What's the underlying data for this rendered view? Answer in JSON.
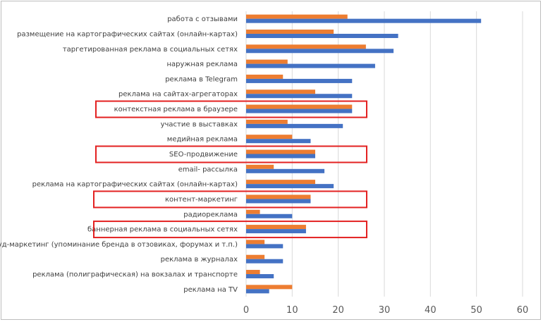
{
  "chart_data": {
    "type": "bar",
    "orientation": "horizontal",
    "categories": [
      "работа с отзывами",
      "размещение на картографических сайтах (онлайн-картах)",
      "таргетированная реклама в социальных сетях",
      "наружная реклама",
      "реклама в Telegram",
      "реклама на сайтах-агрегаторах",
      "контекстная реклама в браузере",
      "участие в выставках",
      "медийная реклама",
      "SEO-продвижение",
      "email- рассылка",
      "реклама на картографических сайтах (онлайн-картах)",
      "контент-маркетинг",
      "радиореклама",
      "баннерная реклама в социальных сетях",
      "крауд-маркетинг (упоминание бренда в отзовиках, форумах и т.п.)",
      "реклама в журналах",
      "реклама (полиграфическая) на вокзалах и транспорте",
      "реклама на TV"
    ],
    "series": [
      {
        "color": "#ed7d31",
        "values": [
          22,
          19,
          26,
          9,
          8,
          15,
          23,
          9,
          10,
          15,
          6,
          15,
          14,
          3,
          13,
          4,
          4,
          3,
          10
        ]
      },
      {
        "color": "#4472c4",
        "values": [
          51,
          33,
          32,
          28,
          23,
          23,
          23,
          21,
          14,
          15,
          17,
          19,
          14,
          10,
          13,
          8,
          8,
          6,
          5
        ]
      }
    ],
    "xlim": [
      0,
      60
    ],
    "xticks": [
      "0",
      "10",
      "20",
      "30",
      "40",
      "50",
      "60"
    ],
    "grid": "vertical",
    "legend": "none",
    "highlighted_categories": [
      "контекстная реклама в браузере",
      "SEO-продвижение",
      "контент-маркетинг",
      "баннерная реклама в социальных сетях"
    ],
    "highlight_color": "#e32121"
  }
}
